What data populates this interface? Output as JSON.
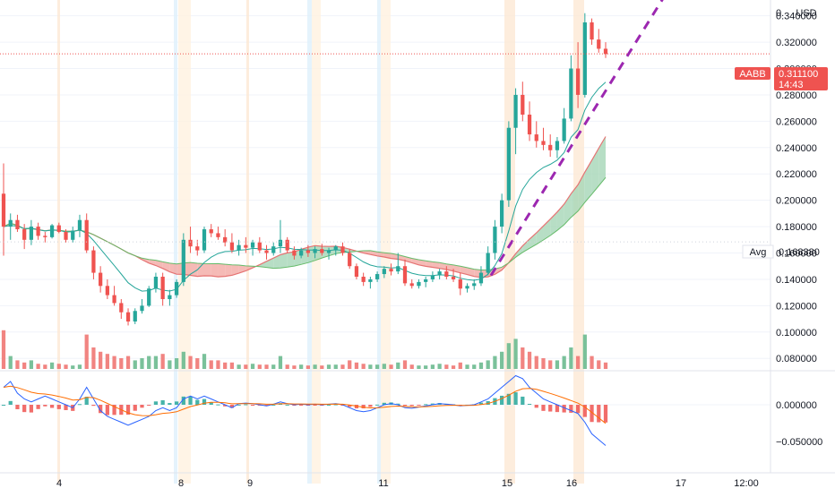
{
  "chart_data": {
    "type": "candlestick",
    "symbol": "AABB",
    "currency_label": "USD",
    "last_price_label": "0.311100",
    "countdown_label": "14:43",
    "avg_label": "Avg",
    "avg_value_label": "0.168380",
    "price_axis": {
      "ticks": [
        "0.340000",
        "0.320000",
        "0.300000",
        "0.280000",
        "0.260000",
        "0.240000",
        "0.220000",
        "0.200000",
        "0.180000",
        "0.160000",
        "0.140000",
        "0.120000",
        "0.100000",
        "0.080000"
      ],
      "top_partial_label": "0."
    },
    "macd_axis": {
      "ticks": [
        "0.000000",
        "−0.050000"
      ]
    },
    "time_axis": {
      "labels": [
        "4",
        "8",
        "9",
        "11",
        "15",
        "16",
        "17",
        "12:00"
      ]
    },
    "candles": [
      [
        0.205,
        0.228,
        0.158,
        0.18
      ],
      [
        0.18,
        0.19,
        0.17,
        0.185
      ],
      [
        0.185,
        0.189,
        0.176,
        0.178
      ],
      [
        0.178,
        0.182,
        0.163,
        0.17
      ],
      [
        0.17,
        0.185,
        0.166,
        0.18
      ],
      [
        0.18,
        0.183,
        0.17,
        0.173
      ],
      [
        0.173,
        0.176,
        0.168,
        0.172
      ],
      [
        0.172,
        0.182,
        0.171,
        0.181
      ],
      [
        0.181,
        0.183,
        0.175,
        0.176
      ],
      [
        0.176,
        0.178,
        0.168,
        0.17
      ],
      [
        0.17,
        0.18,
        0.168,
        0.177
      ],
      [
        0.177,
        0.189,
        0.172,
        0.185
      ],
      [
        0.185,
        0.19,
        0.16,
        0.162
      ],
      [
        0.162,
        0.165,
        0.14,
        0.145
      ],
      [
        0.145,
        0.15,
        0.13,
        0.135
      ],
      [
        0.135,
        0.14,
        0.125,
        0.128
      ],
      [
        0.128,
        0.135,
        0.12,
        0.122
      ],
      [
        0.122,
        0.125,
        0.11,
        0.115
      ],
      [
        0.115,
        0.118,
        0.105,
        0.108
      ],
      [
        0.108,
        0.118,
        0.106,
        0.116
      ],
      [
        0.116,
        0.125,
        0.114,
        0.12
      ],
      [
        0.12,
        0.135,
        0.119,
        0.133
      ],
      [
        0.133,
        0.145,
        0.13,
        0.142
      ],
      [
        0.142,
        0.145,
        0.12,
        0.125
      ],
      [
        0.125,
        0.132,
        0.12,
        0.128
      ],
      [
        0.128,
        0.14,
        0.126,
        0.138
      ],
      [
        0.138,
        0.175,
        0.135,
        0.17
      ],
      [
        0.17,
        0.18,
        0.16,
        0.165
      ],
      [
        0.165,
        0.17,
        0.158,
        0.162
      ],
      [
        0.162,
        0.18,
        0.16,
        0.178
      ],
      [
        0.178,
        0.182,
        0.172,
        0.175
      ],
      [
        0.175,
        0.18,
        0.17,
        0.172
      ],
      [
        0.172,
        0.178,
        0.165,
        0.168
      ],
      [
        0.168,
        0.175,
        0.16,
        0.162
      ],
      [
        0.162,
        0.17,
        0.158,
        0.166
      ],
      [
        0.166,
        0.172,
        0.16,
        0.164
      ],
      [
        0.164,
        0.17,
        0.158,
        0.168
      ],
      [
        0.168,
        0.172,
        0.16,
        0.162
      ],
      [
        0.162,
        0.166,
        0.155,
        0.16
      ],
      [
        0.16,
        0.168,
        0.158,
        0.165
      ],
      [
        0.165,
        0.185,
        0.16,
        0.17
      ],
      [
        0.17,
        0.172,
        0.16,
        0.162
      ],
      [
        0.162,
        0.165,
        0.155,
        0.158
      ],
      [
        0.158,
        0.164,
        0.156,
        0.162
      ],
      [
        0.162,
        0.166,
        0.157,
        0.16
      ],
      [
        0.16,
        0.165,
        0.156,
        0.163
      ],
      [
        0.163,
        0.167,
        0.158,
        0.16
      ],
      [
        0.16,
        0.164,
        0.155,
        0.162
      ],
      [
        0.162,
        0.166,
        0.158,
        0.165
      ],
      [
        0.165,
        0.168,
        0.158,
        0.16
      ],
      [
        0.16,
        0.163,
        0.148,
        0.15
      ],
      [
        0.15,
        0.152,
        0.14,
        0.142
      ],
      [
        0.142,
        0.145,
        0.135,
        0.138
      ],
      [
        0.138,
        0.142,
        0.133,
        0.14
      ],
      [
        0.14,
        0.146,
        0.138,
        0.144
      ],
      [
        0.144,
        0.15,
        0.141,
        0.148
      ],
      [
        0.148,
        0.152,
        0.143,
        0.146
      ],
      [
        0.146,
        0.16,
        0.144,
        0.15
      ],
      [
        0.15,
        0.155,
        0.135,
        0.137
      ],
      [
        0.137,
        0.14,
        0.133,
        0.135
      ],
      [
        0.135,
        0.14,
        0.133,
        0.138
      ],
      [
        0.138,
        0.142,
        0.134,
        0.14
      ],
      [
        0.14,
        0.146,
        0.138,
        0.143
      ],
      [
        0.143,
        0.148,
        0.14,
        0.146
      ],
      [
        0.146,
        0.15,
        0.14,
        0.142
      ],
      [
        0.142,
        0.148,
        0.138,
        0.14
      ],
      [
        0.14,
        0.145,
        0.128,
        0.133
      ],
      [
        0.133,
        0.137,
        0.13,
        0.135
      ],
      [
        0.135,
        0.14,
        0.132,
        0.137
      ],
      [
        0.137,
        0.15,
        0.135,
        0.145
      ],
      [
        0.145,
        0.165,
        0.143,
        0.16
      ],
      [
        0.16,
        0.185,
        0.155,
        0.18
      ],
      [
        0.18,
        0.205,
        0.175,
        0.2
      ],
      [
        0.2,
        0.26,
        0.195,
        0.255
      ],
      [
        0.255,
        0.285,
        0.235,
        0.28
      ],
      [
        0.28,
        0.29,
        0.26,
        0.265
      ],
      [
        0.265,
        0.275,
        0.245,
        0.25
      ],
      [
        0.25,
        0.26,
        0.24,
        0.245
      ],
      [
        0.245,
        0.255,
        0.238,
        0.242
      ],
      [
        0.242,
        0.25,
        0.233,
        0.238
      ],
      [
        0.238,
        0.248,
        0.232,
        0.245
      ],
      [
        0.245,
        0.27,
        0.243,
        0.262
      ],
      [
        0.262,
        0.31,
        0.26,
        0.3
      ],
      [
        0.3,
        0.32,
        0.27,
        0.28
      ],
      [
        0.28,
        0.342,
        0.278,
        0.335
      ],
      [
        0.335,
        0.338,
        0.318,
        0.322
      ],
      [
        0.322,
        0.33,
        0.312,
        0.315
      ],
      [
        0.315,
        0.32,
        0.308,
        0.311
      ]
    ],
    "volume_axis_max": 0.1,
    "volume_relative": [
      0.9,
      0.3,
      0.2,
      0.15,
      0.2,
      0.12,
      0.1,
      0.15,
      0.12,
      0.1,
      0.08,
      0.1,
      0.8,
      0.5,
      0.4,
      0.35,
      0.3,
      0.25,
      0.3,
      0.2,
      0.25,
      0.3,
      0.3,
      0.35,
      0.2,
      0.25,
      0.4,
      0.3,
      0.25,
      0.35,
      0.2,
      0.2,
      0.15,
      0.15,
      0.1,
      0.1,
      0.12,
      0.1,
      0.1,
      0.1,
      0.3,
      0.1,
      0.08,
      0.1,
      0.08,
      0.1,
      0.08,
      0.1,
      0.1,
      0.1,
      0.2,
      0.15,
      0.12,
      0.1,
      0.1,
      0.12,
      0.1,
      0.15,
      0.2,
      0.1,
      0.08,
      0.08,
      0.1,
      0.12,
      0.1,
      0.08,
      0.15,
      0.1,
      0.1,
      0.15,
      0.2,
      0.3,
      0.4,
      0.6,
      0.7,
      0.5,
      0.4,
      0.3,
      0.25,
      0.2,
      0.2,
      0.3,
      0.5,
      0.3,
      0.8,
      0.3,
      0.2,
      0.15
    ],
    "macd_relative": [
      0.3,
      0.4,
      0.2,
      0.1,
      0.05,
      0.1,
      0.15,
      0.1,
      0.05,
      0.0,
      -0.05,
      0.1,
      0.3,
      0.1,
      -0.1,
      -0.2,
      -0.25,
      -0.3,
      -0.35,
      -0.3,
      -0.25,
      -0.2,
      -0.1,
      -0.05,
      -0.1,
      -0.05,
      0.1,
      0.15,
      0.1,
      0.15,
      0.1,
      0.05,
      0.0,
      -0.05,
      0.02,
      0.03,
      0.02,
      0.0,
      -0.02,
      0.01,
      0.05,
      0.02,
      0.0,
      0.01,
      0.0,
      0.01,
      0.0,
      0.01,
      0.02,
      0.0,
      -0.05,
      -0.1,
      -0.12,
      -0.1,
      -0.05,
      0.0,
      0.02,
      0.0,
      -0.05,
      -0.06,
      -0.04,
      -0.02,
      0.0,
      0.02,
      0.01,
      0.0,
      -0.02,
      -0.01,
      0.0,
      0.05,
      0.1,
      0.2,
      0.3,
      0.4,
      0.5,
      0.45,
      0.3,
      0.2,
      0.1,
      0.05,
      0.0,
      -0.05,
      -0.1,
      -0.15,
      -0.3,
      -0.5,
      -0.6,
      -0.7
    ],
    "avg_line": 0.16838,
    "trend_line": {
      "from": [
        0.143
      ],
      "to": [
        0.375
      ],
      "style": "dashed"
    }
  }
}
